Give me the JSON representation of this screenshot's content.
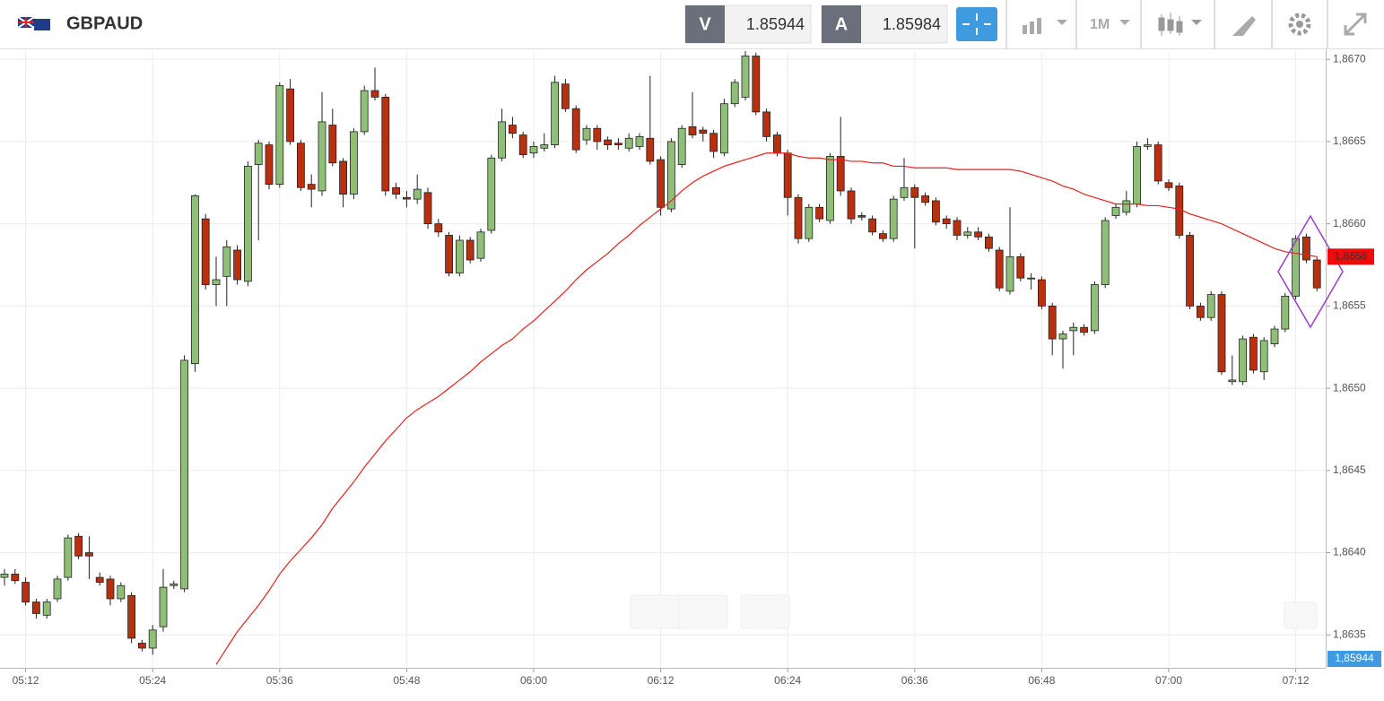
{
  "toolbar": {
    "symbol": "GBPAUD",
    "bid_label": "V",
    "bid": "1.85944",
    "ask_label": "A",
    "ask": "1.85984",
    "timeframe": "1M"
  },
  "chart_data": {
    "type": "candlestick",
    "categories": [
      null,
      null,
      "05:12",
      null,
      null,
      null,
      null,
      null,
      null,
      null,
      null,
      null,
      null,
      null,
      "05:24",
      null,
      null,
      null,
      null,
      null,
      null,
      null,
      null,
      null,
      null,
      null,
      "05:36",
      null,
      null,
      null,
      null,
      null,
      null,
      null,
      null,
      null,
      null,
      null,
      "05:48",
      null,
      null,
      null,
      null,
      null,
      null,
      null,
      null,
      null,
      null,
      null,
      "06:00",
      null,
      null,
      null,
      null,
      null,
      null,
      null,
      null,
      null,
      null,
      null,
      "06:12",
      null,
      null,
      null,
      null,
      null,
      null,
      null,
      null,
      null,
      null,
      null,
      "06:24",
      null,
      null,
      null,
      null,
      null,
      null,
      null,
      null,
      null,
      null,
      null,
      "06:36",
      null,
      null,
      null,
      null,
      null,
      null,
      null,
      null,
      null,
      null,
      null,
      "06:48",
      null,
      null,
      null,
      null,
      null,
      null,
      null,
      null,
      null,
      null,
      null,
      "07:00",
      null,
      null,
      null,
      null,
      null,
      null,
      null,
      null,
      null,
      null,
      null,
      "07:12",
      null,
      null
    ],
    "open": [
      1.86385,
      1.86387,
      1.86382,
      1.8637,
      1.86362,
      1.86372,
      1.86385,
      1.8641,
      1.864,
      1.86385,
      1.86384,
      1.86372,
      1.86374,
      1.86345,
      1.86342,
      1.86355,
      1.8638,
      1.86378,
      1.86515,
      1.86603,
      1.86563,
      1.86568,
      1.86584,
      1.86565,
      1.86636,
      1.86648,
      1.86624,
      1.86682,
      1.86649,
      1.86624,
      1.8662,
      1.8666,
      1.86638,
      1.86618,
      1.86656,
      1.86681,
      1.86677,
      1.86622,
      1.86616,
      1.86615,
      1.86619,
      1.866,
      1.86593,
      1.8657,
      1.8659,
      1.86579,
      1.86596,
      1.8664,
      1.8666,
      1.86654,
      1.86643,
      1.86646,
      1.86648,
      1.86685,
      1.8667,
      1.86651,
      1.86658,
      1.86651,
      1.86649,
      1.86646,
      1.86647,
      1.86652,
      1.86639,
      1.86609,
      1.86636,
      1.86659,
      1.86657,
      1.86655,
      1.86643,
      1.86673,
      1.86677,
      1.86702,
      1.86668,
      1.86654,
      1.86643,
      1.86616,
      1.86591,
      1.8661,
      1.86602,
      1.86641,
      1.8662,
      1.86605,
      1.86603,
      1.86594,
      1.86591,
      1.86616,
      1.86622,
      1.86617,
      1.86614,
      1.86603,
      1.86602,
      1.86593,
      1.86595,
      1.86592,
      1.86584,
      1.86559,
      1.8658,
      1.86567,
      1.86566,
      1.8655,
      1.8653,
      1.86535,
      1.86537,
      1.86535,
      1.86563,
      1.86605,
      1.86607,
      1.86612,
      1.86647,
      1.86648,
      1.86625,
      1.86623,
      1.86593,
      1.8655,
      1.86543,
      1.86557,
      1.86504,
      1.86504,
      1.86531,
      1.8651,
      1.86527,
      1.86536,
      1.86556,
      1.86592,
      1.86578
    ],
    "high": [
      1.8639,
      1.8639,
      1.86385,
      1.86372,
      1.86372,
      1.86386,
      1.86411,
      1.86412,
      1.8641,
      1.86388,
      1.86386,
      1.86382,
      1.86376,
      1.86347,
      1.86356,
      1.8639,
      1.86383,
      1.8652,
      1.86618,
      1.86606,
      1.8658,
      1.8659,
      1.86587,
      1.86638,
      1.86651,
      1.8665,
      1.86686,
      1.86688,
      1.86651,
      1.8663,
      1.8668,
      1.8667,
      1.8664,
      1.86658,
      1.86684,
      1.86695,
      1.86679,
      1.86625,
      1.8662,
      1.8663,
      1.86622,
      1.86603,
      1.86595,
      1.86593,
      1.86592,
      1.86597,
      1.86642,
      1.8667,
      1.86665,
      1.86656,
      1.8665,
      1.86655,
      1.8669,
      1.86688,
      1.86672,
      1.8666,
      1.8666,
      1.86653,
      1.86652,
      1.86655,
      1.86655,
      1.8669,
      1.86641,
      1.86652,
      1.8666,
      1.8668,
      1.86659,
      1.86657,
      1.86676,
      1.86688,
      1.86705,
      1.86704,
      1.8667,
      1.86656,
      1.86645,
      1.86618,
      1.86612,
      1.86612,
      1.86643,
      1.86665,
      1.86622,
      1.86607,
      1.86605,
      1.86596,
      1.86617,
      1.8664,
      1.86624,
      1.86619,
      1.86616,
      1.86605,
      1.86604,
      1.86598,
      1.86598,
      1.86594,
      1.86586,
      1.8661,
      1.86582,
      1.8657,
      1.86568,
      1.86552,
      1.86535,
      1.8654,
      1.86539,
      1.86565,
      1.86604,
      1.86612,
      1.8662,
      1.8665,
      1.86652,
      1.8665,
      1.86627,
      1.86625,
      1.86595,
      1.86552,
      1.86559,
      1.86559,
      1.8652,
      1.86532,
      1.86533,
      1.86531,
      1.86538,
      1.86558,
      1.86593,
      1.86594,
      1.8658
    ],
    "low": [
      1.8638,
      1.86381,
      1.86368,
      1.8636,
      1.8636,
      1.8637,
      1.86383,
      1.86396,
      1.86384,
      1.8638,
      1.86368,
      1.8637,
      1.86345,
      1.8634,
      1.86338,
      1.86352,
      1.86378,
      1.86376,
      1.8651,
      1.8656,
      1.8655,
      1.8655,
      1.86563,
      1.86562,
      1.8659,
      1.86621,
      1.86622,
      1.86648,
      1.8662,
      1.8661,
      1.86617,
      1.86635,
      1.8661,
      1.86615,
      1.86654,
      1.86675,
      1.86617,
      1.86615,
      1.8661,
      1.86612,
      1.86597,
      1.86592,
      1.86568,
      1.86568,
      1.86576,
      1.86577,
      1.86594,
      1.86638,
      1.86652,
      1.8664,
      1.8664,
      1.86644,
      1.86646,
      1.86668,
      1.86643,
      1.86648,
      1.86645,
      1.86645,
      1.86645,
      1.86644,
      1.86645,
      1.86636,
      1.86605,
      1.86607,
      1.86634,
      1.86652,
      1.8665,
      1.8664,
      1.86641,
      1.86671,
      1.86675,
      1.86666,
      1.8665,
      1.86641,
      1.86605,
      1.86588,
      1.86589,
      1.86601,
      1.866,
      1.86617,
      1.866,
      1.86602,
      1.86593,
      1.86589,
      1.86589,
      1.86614,
      1.86585,
      1.86611,
      1.86599,
      1.86597,
      1.8659,
      1.86591,
      1.8659,
      1.86583,
      1.86559,
      1.86557,
      1.86565,
      1.8656,
      1.86548,
      1.8652,
      1.86512,
      1.8652,
      1.86532,
      1.86533,
      1.86561,
      1.86603,
      1.86605,
      1.8661,
      1.86645,
      1.86624,
      1.8662,
      1.86591,
      1.86548,
      1.86541,
      1.86541,
      1.86508,
      1.86502,
      1.86502,
      1.86509,
      1.86505,
      1.86525,
      1.86534,
      1.86554,
      1.86576,
      1.86559
    ],
    "close": [
      1.86387,
      1.86383,
      1.8637,
      1.86363,
      1.8637,
      1.86384,
      1.86409,
      1.86398,
      1.86398,
      1.86382,
      1.86372,
      1.8638,
      1.86348,
      1.86342,
      1.86353,
      1.86379,
      1.86381,
      1.86517,
      1.86617,
      1.86563,
      1.86566,
      1.86586,
      1.86566,
      1.86635,
      1.86649,
      1.86624,
      1.86684,
      1.8665,
      1.86622,
      1.86621,
      1.86662,
      1.86637,
      1.86618,
      1.86656,
      1.86681,
      1.86677,
      1.8662,
      1.86618,
      1.86615,
      1.86621,
      1.866,
      1.86595,
      1.8657,
      1.8659,
      1.86578,
      1.86595,
      1.8664,
      1.86662,
      1.86655,
      1.86642,
      1.86647,
      1.86648,
      1.86686,
      1.8667,
      1.86645,
      1.86658,
      1.8665,
      1.86648,
      1.86648,
      1.86652,
      1.86653,
      1.86638,
      1.8661,
      1.8665,
      1.86658,
      1.86654,
      1.86655,
      1.86644,
      1.86673,
      1.86686,
      1.86702,
      1.86668,
      1.86653,
      1.86643,
      1.86616,
      1.86591,
      1.8661,
      1.86603,
      1.86641,
      1.8662,
      1.86603,
      1.86604,
      1.86595,
      1.86591,
      1.86615,
      1.86622,
      1.86616,
      1.86613,
      1.86601,
      1.866,
      1.86593,
      1.86595,
      1.86592,
      1.86585,
      1.86561,
      1.8658,
      1.86567,
      1.86567,
      1.8655,
      1.8653,
      1.86533,
      1.86537,
      1.86534,
      1.86563,
      1.86602,
      1.8661,
      1.86614,
      1.86647,
      1.86648,
      1.86626,
      1.86622,
      1.86593,
      1.8655,
      1.86543,
      1.86557,
      1.8651,
      1.86505,
      1.8653,
      1.86511,
      1.86529,
      1.86536,
      1.86556,
      1.86591,
      1.86578,
      1.86561
    ],
    "up_color": "#8fbf77",
    "down_color": "#b8300f",
    "ma": {
      "color": "#e8211c",
      "values": [
        null,
        null,
        null,
        null,
        null,
        null,
        null,
        null,
        null,
        null,
        null,
        null,
        null,
        null,
        null,
        null,
        null,
        null,
        null,
        null,
        1.86332,
        1.86342,
        1.86352,
        1.8636,
        1.86368,
        1.86377,
        1.86387,
        1.86395,
        1.86402,
        1.86409,
        1.86417,
        1.86427,
        1.86435,
        1.86443,
        1.86452,
        1.8646,
        1.86468,
        1.86475,
        1.86482,
        1.86487,
        1.86491,
        1.86495,
        1.865,
        1.86505,
        1.8651,
        1.86516,
        1.86521,
        1.86526,
        1.8653,
        1.86536,
        1.86541,
        1.86547,
        1.86553,
        1.86559,
        1.86566,
        1.86572,
        1.86577,
        1.86582,
        1.86588,
        1.86593,
        1.86599,
        1.86604,
        1.86609,
        1.86614,
        1.8662,
        1.86625,
        1.86629,
        1.86632,
        1.86635,
        1.86637,
        1.86639,
        1.86641,
        1.86643,
        1.86643,
        1.86643,
        1.86641,
        1.8664,
        1.8664,
        1.86639,
        1.86639,
        1.86638,
        1.86638,
        1.86637,
        1.86637,
        1.86635,
        1.86635,
        1.86634,
        1.86634,
        1.86634,
        1.86634,
        1.86633,
        1.86633,
        1.86633,
        1.86633,
        1.86633,
        1.86633,
        1.86632,
        1.8663,
        1.86628,
        1.86626,
        1.86623,
        1.86621,
        1.86618,
        1.86616,
        1.86614,
        1.86612,
        1.86612,
        1.86612,
        1.86611,
        1.86611,
        1.8661,
        1.86609,
        1.86606,
        1.86604,
        1.86602,
        1.866,
        1.86597,
        1.86594,
        1.86591,
        1.86588,
        1.86585,
        1.86583,
        1.86582,
        1.86581,
        1.8658
      ]
    },
    "ma_label": "1,8658",
    "price_label": "1,85944",
    "ylim": [
      1.8633,
      1.86705
    ],
    "yticks": [
      {
        "value": 1.8635,
        "label": "1,8635"
      },
      {
        "value": 1.864,
        "label": "1,8640"
      },
      {
        "value": 1.8645,
        "label": "1,8645"
      },
      {
        "value": 1.865,
        "label": "1,8650"
      },
      {
        "value": 1.8655,
        "label": "1,8655"
      },
      {
        "value": 1.866,
        "label": "1,8660"
      },
      {
        "value": 1.8665,
        "label": "1,8665"
      },
      {
        "value": 1.867,
        "label": "1,8670"
      }
    ],
    "grid": true
  }
}
